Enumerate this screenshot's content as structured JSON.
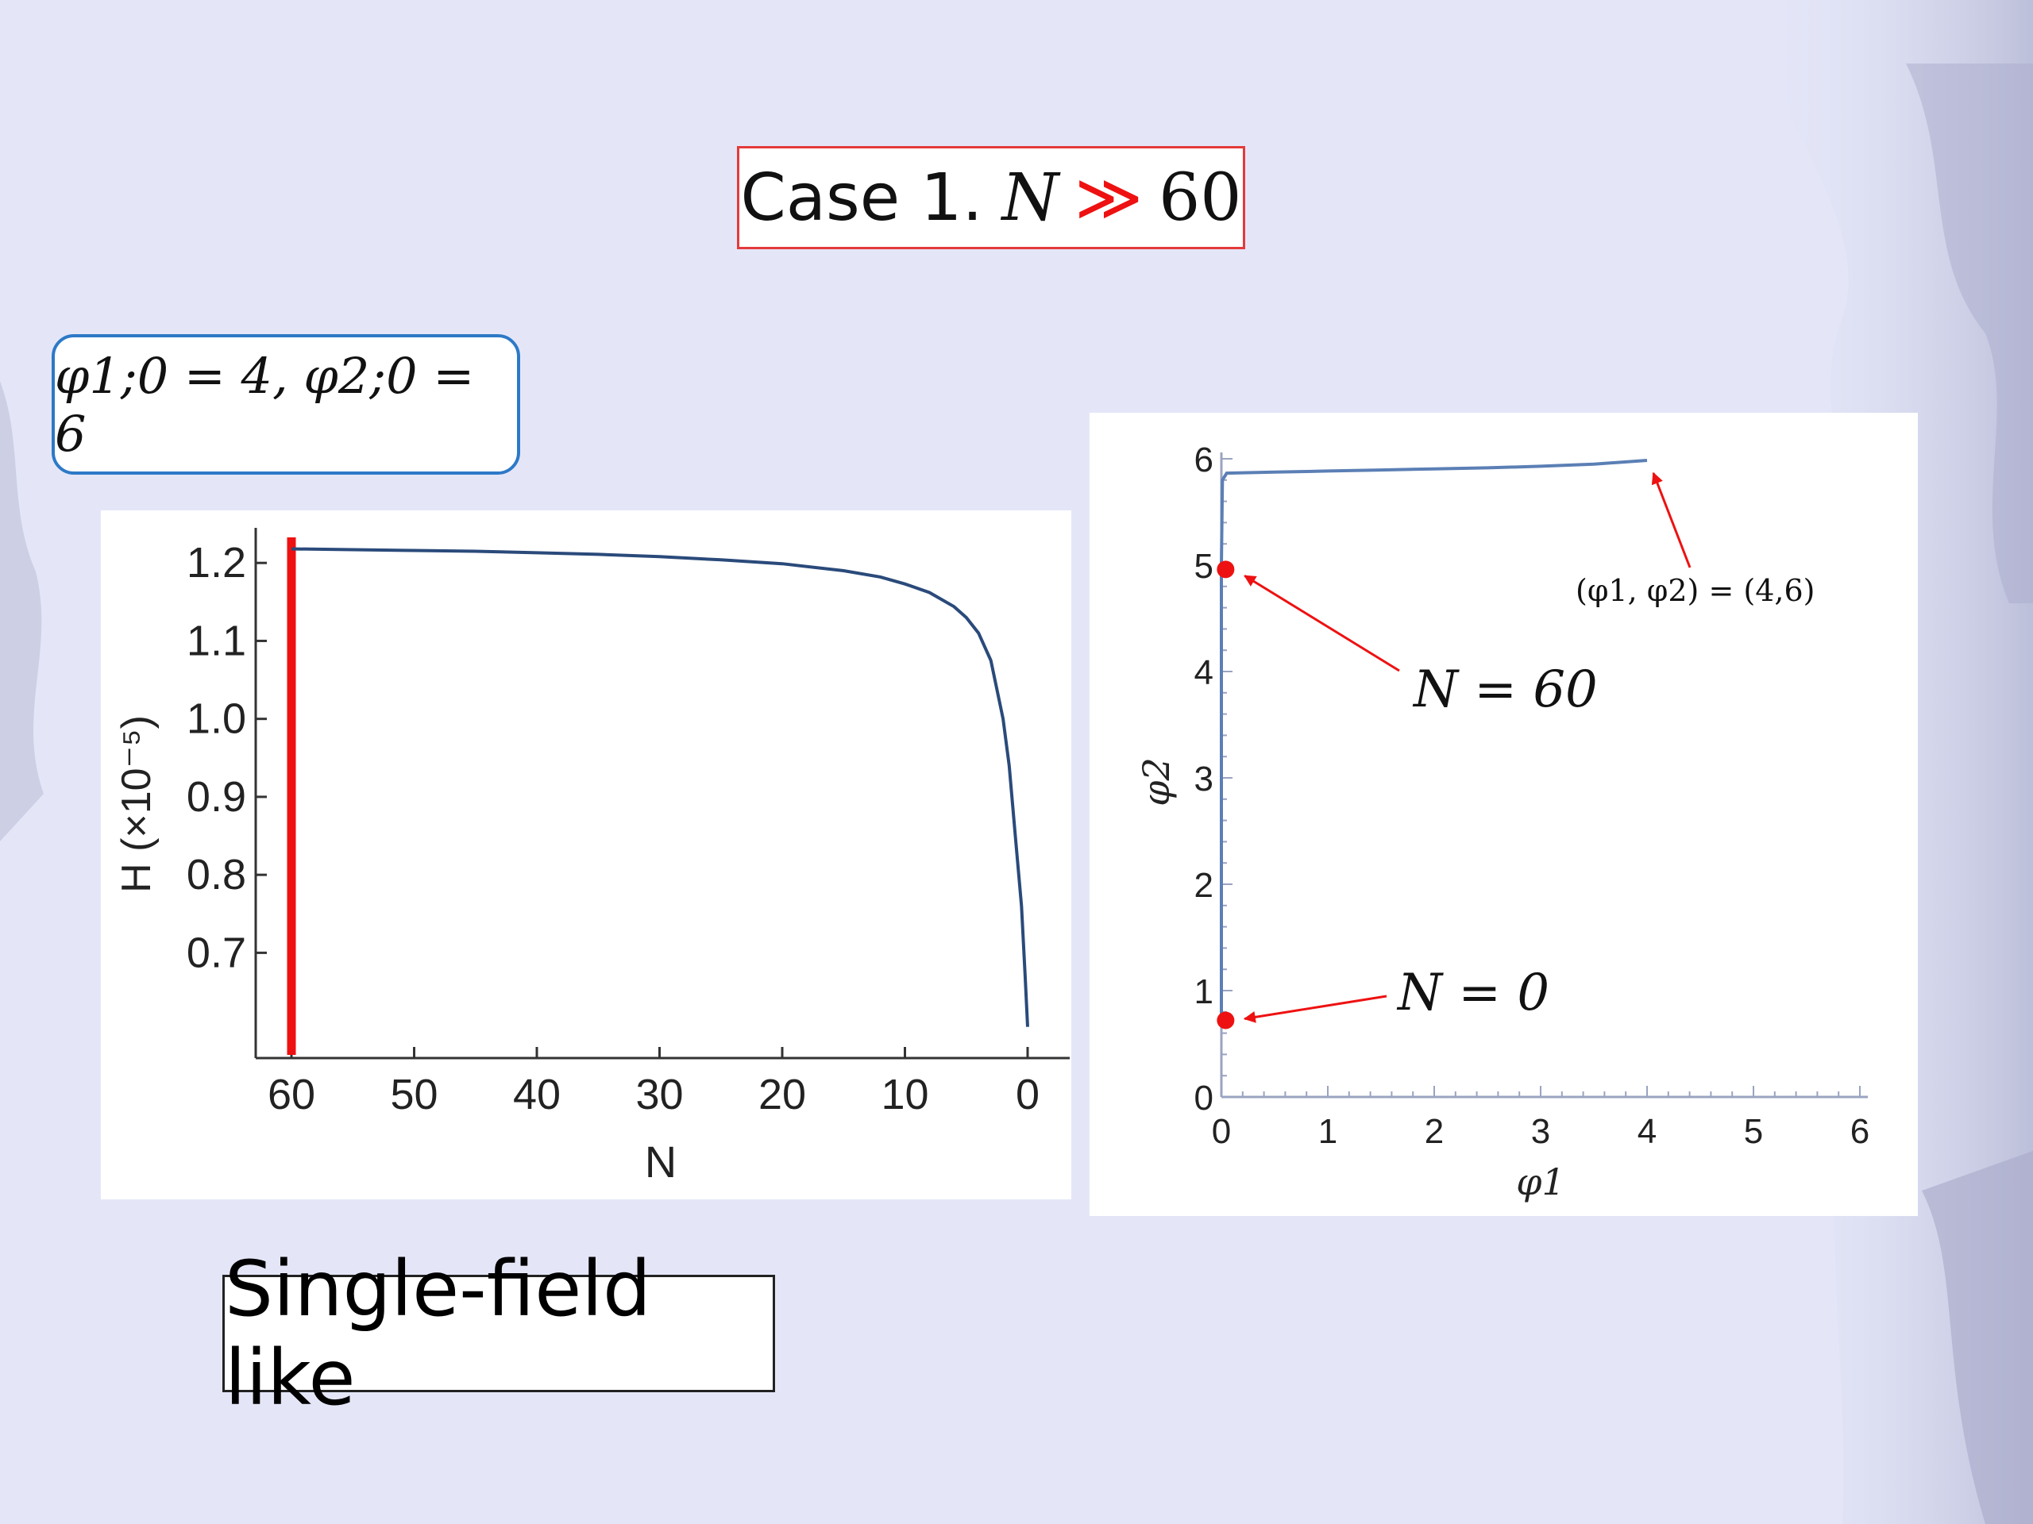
{
  "slide": {
    "title_prefix": "Case 1.",
    "title_var": "N",
    "title_relation": "≫",
    "title_value": "60",
    "conditions": "φ1;0 = 4, φ2;0 = 6",
    "footer_label": "Single-field like"
  },
  "colors": {
    "curve": "#2a4a7a",
    "marker": "#ee1111",
    "title_border": "#e43a3a",
    "condition_border": "#2d79c7"
  },
  "chart_data": [
    {
      "type": "line",
      "title": "",
      "xlabel": "N",
      "ylabel": "H (×10⁻⁵)",
      "xlim": [
        61.5,
        -2.5
      ],
      "ylim": [
        0.565,
        1.245
      ],
      "x_reversed": true,
      "x_ticks": [
        60,
        50,
        40,
        30,
        20,
        10,
        0
      ],
      "y_ticks": [
        1.2,
        1.1,
        1.0,
        0.9,
        0.8,
        0.7
      ],
      "series": [
        {
          "x": [
            60,
            55,
            50,
            45,
            40,
            35,
            30,
            25,
            20,
            15,
            12,
            10,
            8,
            6,
            5,
            4,
            3,
            2,
            1.5,
            1,
            0.5,
            0.2,
            0
          ],
          "y": [
            1.218,
            1.217,
            1.216,
            1.215,
            1.213,
            1.211,
            1.208,
            1.204,
            1.199,
            1.19,
            1.182,
            1.173,
            1.162,
            1.144,
            1.13,
            1.11,
            1.075,
            1.0,
            0.94,
            0.85,
            0.76,
            0.67,
            0.605
          ]
        }
      ],
      "annotations": [
        {
          "type": "vertical_line",
          "x": 60,
          "label": ""
        }
      ],
      "grid": false
    },
    {
      "type": "line",
      "title": "",
      "xlabel": "φ1",
      "ylabel": "φ2",
      "xlim": [
        0,
        6
      ],
      "ylim": [
        0,
        6
      ],
      "x_ticks": [
        0,
        1,
        2,
        3,
        4,
        5,
        6
      ],
      "y_ticks": [
        0,
        1,
        2,
        3,
        4,
        5,
        6
      ],
      "series": [
        {
          "x": [
            0,
            0,
            0,
            0,
            0,
            0.01,
            0.05,
            0.5,
            1,
            1.5,
            2,
            2.5,
            3,
            3.5,
            4
          ],
          "y": [
            0.72,
            2,
            3,
            4,
            5,
            5.8,
            5.865,
            5.875,
            5.885,
            5.895,
            5.905,
            5.915,
            5.93,
            5.95,
            5.985
          ]
        }
      ],
      "points": [
        {
          "x": 0.04,
          "y": 4.96,
          "label": "N = 60"
        },
        {
          "x": 0.04,
          "y": 0.72,
          "label": "N = 0"
        }
      ],
      "annotations": [
        {
          "type": "arrow_label",
          "target": [
            4,
            5.985
          ],
          "label": "(φ1, φ2) = (4,6)"
        }
      ],
      "grid": false
    }
  ]
}
